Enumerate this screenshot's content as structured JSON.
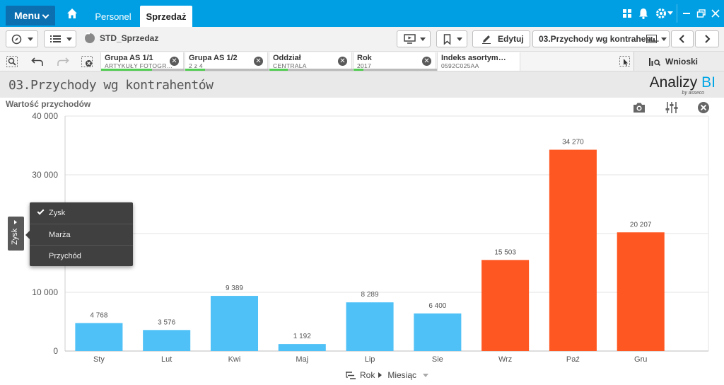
{
  "topbar": {
    "menu_label": "Menu",
    "tabs": [
      {
        "label": "Personel",
        "active": false
      },
      {
        "label": "Sprzedaż",
        "active": true
      }
    ],
    "bg_color": "#009fe3"
  },
  "toolbar": {
    "sheet_name": "STD_Sprzedaz",
    "edit_label": "Edytuj",
    "report_select": "03.Przychody wg kontrahen…"
  },
  "selections": {
    "filters": [
      {
        "name": "Grupa AS 1/1",
        "value": "ARTYKUŁY FOTOGR…",
        "bar_color": "#52cc52"
      },
      {
        "name": "Grupa AS 1/2",
        "value": "2 z 4",
        "bar_color": "#52cc52"
      },
      {
        "name": "Oddział",
        "value": "CENTRALA",
        "bar_color": "#52cc52"
      },
      {
        "name": "Rok",
        "value": "2017",
        "bar_color": "#52cc52"
      },
      {
        "name": "Indeks asortym…",
        "value": "0592C025AA",
        "bar_color": "#52cc52"
      }
    ],
    "insights_label": "Wnioski"
  },
  "page": {
    "title": "03.Przychody wg kontrahentów",
    "logo_text": "Analizy",
    "logo_accent": "BI",
    "logo_sub": "by asseco"
  },
  "chart": {
    "title": "Wartość przychodów"
  },
  "measure_menu": {
    "handle_label": "Zysk",
    "items": [
      {
        "label": "Zysk",
        "checked": true
      },
      {
        "label": "Marża",
        "checked": false
      },
      {
        "label": "Przychód",
        "checked": false
      }
    ]
  },
  "dimension_bar": {
    "levels": [
      "Rok",
      "Miesiąc"
    ]
  },
  "chart_data": {
    "type": "bar",
    "title": "Wartość przychodów",
    "xlabel": "",
    "ylabel": "",
    "categories": [
      "Sty",
      "Lut",
      "Kwi",
      "Maj",
      "Lip",
      "Sie",
      "Wrz",
      "Paź",
      "Gru"
    ],
    "values": [
      4768,
      3576,
      9389,
      1192,
      8289,
      6400,
      15503,
      34270,
      20207
    ],
    "value_labels": [
      "4 768",
      "3 576",
      "9 389",
      "1 192",
      "8 289",
      "6 400",
      "15 503",
      "34 270",
      "20 207"
    ],
    "ylim": [
      0,
      40000
    ],
    "yticks": [
      0,
      10000,
      20000,
      30000,
      40000
    ],
    "ytick_labels": [
      "0",
      "10 000",
      "",
      "30 000",
      "40 000"
    ],
    "colors": [
      "#4fc1f6",
      "#4fc1f6",
      "#4fc1f6",
      "#4fc1f6",
      "#4fc1f6",
      "#4fc1f6",
      "#ff5722",
      "#ff5722",
      "#ff5722"
    ],
    "grid": true
  }
}
